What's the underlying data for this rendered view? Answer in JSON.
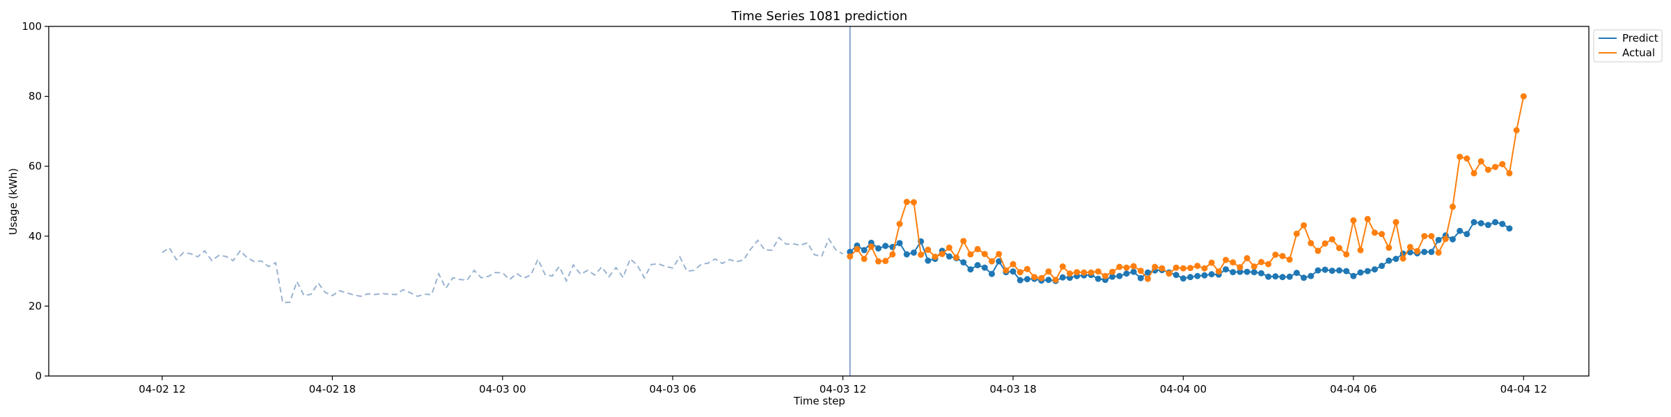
{
  "chart_data": {
    "type": "line",
    "title": "Time Series 1081 prediction",
    "xlabel": "Time step",
    "ylabel": "Usage (kWh)",
    "ylim": [
      0,
      100
    ],
    "yticks": [
      0,
      20,
      40,
      60,
      80,
      100
    ],
    "xlim": [
      "2026-04-02 08:00",
      "2026-04-04 14:18"
    ],
    "xticks": [
      {
        "at": "2026-04-02 12:00",
        "label": "04-02 12"
      },
      {
        "at": "2026-04-02 18:00",
        "label": "04-02 18"
      },
      {
        "at": "2026-04-03 00:00",
        "label": "04-03 00"
      },
      {
        "at": "2026-04-03 06:00",
        "label": "04-03 06"
      },
      {
        "at": "2026-04-03 12:00",
        "label": "04-03 12"
      },
      {
        "at": "2026-04-03 18:00",
        "label": "04-03 18"
      },
      {
        "at": "2026-04-04 00:00",
        "label": "04-04 00"
      },
      {
        "at": "2026-04-04 06:00",
        "label": "04-04 06"
      },
      {
        "at": "2026-04-04 12:00",
        "label": "04-04 12"
      }
    ],
    "x_interval_minutes": 15,
    "split_at": "2026-04-03 12:15",
    "grid": false,
    "legend_position": "top-right, outside plot",
    "series": [
      {
        "name": "",
        "role": "history",
        "style": "dashed",
        "color": "#9ab2d1",
        "start": "2026-04-02 12:00",
        "values": [
          35.3,
          36.7,
          33.3,
          35.3,
          35.0,
          34.1,
          35.8,
          33.0,
          34.5,
          34.2,
          33.0,
          35.8,
          33.8,
          32.7,
          32.9,
          31.3,
          32.4,
          21.0,
          21.1,
          27.0,
          23.0,
          23.4,
          26.6,
          23.9,
          23.0,
          24.4,
          23.8,
          23.2,
          22.8,
          23.5,
          23.3,
          23.6,
          23.4,
          23.3,
          24.7,
          23.8,
          22.8,
          23.4,
          23.3,
          29.2,
          25.1,
          28.1,
          27.6,
          27.4,
          30.2,
          28.1,
          28.5,
          29.6,
          29.5,
          27.6,
          29.3,
          28.0,
          28.9,
          33.4,
          29.0,
          28.6,
          31.3,
          27.2,
          31.8,
          29.1,
          30.2,
          28.9,
          31.2,
          28.4,
          31.0,
          28.2,
          33.5,
          31.7,
          28.1,
          31.9,
          32.1,
          31.3,
          30.9,
          34.1,
          30.0,
          30.2,
          31.9,
          32.3,
          33.5,
          32.2,
          33.3,
          32.7,
          33.2,
          36.3,
          38.8,
          36.0,
          36.0,
          39.6,
          37.7,
          37.8,
          37.4,
          38.1,
          34.7,
          34.2,
          39.2,
          36.1,
          34.9
        ]
      },
      {
        "name": "Predict",
        "role": "forecast",
        "style": "line+markers",
        "color": "#1f77b4",
        "start": "2026-04-03 12:15",
        "values": [
          35.5,
          37.3,
          36.0,
          38.1,
          36.5,
          37.2,
          36.9,
          38.0,
          34.8,
          35.3,
          38.5,
          33.0,
          33.5,
          35.8,
          34.2,
          33.7,
          32.5,
          30.5,
          31.7,
          31.0,
          29.2,
          32.8,
          29.7,
          29.9,
          27.4,
          27.7,
          27.8,
          27.3,
          27.5,
          27.2,
          28.2,
          28.1,
          28.6,
          28.8,
          28.9,
          27.8,
          27.5,
          28.4,
          28.6,
          29.3,
          29.8,
          28.0,
          29.6,
          30.2,
          30.3,
          29.6,
          28.9,
          27.9,
          28.3,
          28.6,
          28.8,
          29.1,
          29.0,
          30.5,
          29.7,
          29.8,
          29.8,
          29.7,
          29.4,
          28.4,
          28.5,
          28.3,
          28.4,
          29.5,
          28.1,
          28.6,
          30.2,
          30.4,
          30.1,
          30.2,
          30.0,
          28.6,
          29.6,
          30.0,
          30.5,
          31.5,
          33.0,
          33.5,
          35.0,
          35.4,
          35.1,
          35.5,
          35.5,
          38.9,
          40.2,
          39.1,
          41.5,
          40.6,
          44.0,
          43.7,
          43.2,
          44.0,
          43.5,
          42.2
        ]
      },
      {
        "name": "Actual",
        "role": "actual",
        "style": "line+markers",
        "color": "#ff7f0e",
        "start": "2026-04-03 12:15",
        "values": [
          34.2,
          36.3,
          33.5,
          37.0,
          32.8,
          32.9,
          34.8,
          43.5,
          49.8,
          49.7,
          34.7,
          36.1,
          34.1,
          34.9,
          36.7,
          33.9,
          38.6,
          34.8,
          36.3,
          34.9,
          32.8,
          34.9,
          30.2,
          32.0,
          29.7,
          30.6,
          28.3,
          28.0,
          29.9,
          27.5,
          31.3,
          29.3,
          29.7,
          29.6,
          29.6,
          29.9,
          28.6,
          29.8,
          31.2,
          31.0,
          31.4,
          30.1,
          27.8,
          31.2,
          30.8,
          29.3,
          31.0,
          30.8,
          30.9,
          31.5,
          30.8,
          32.4,
          29.9,
          33.2,
          32.5,
          31.1,
          33.7,
          31.3,
          32.6,
          32.0,
          34.7,
          34.3,
          33.3,
          40.7,
          43.1,
          38.0,
          35.8,
          37.9,
          39.1,
          36.6,
          34.8,
          44.5,
          36.0,
          44.9,
          41.0,
          40.6,
          36.7,
          44.0,
          33.6,
          36.9,
          35.7,
          40.0,
          40.0,
          35.3,
          39.2,
          48.4,
          62.7,
          62.2,
          58.0,
          61.4,
          59.0,
          59.8,
          60.6,
          58.0,
          70.3,
          80.0
        ]
      }
    ],
    "vertical_marker": {
      "at": "2026-04-03 12:15",
      "color": "#6b8cc4"
    }
  }
}
